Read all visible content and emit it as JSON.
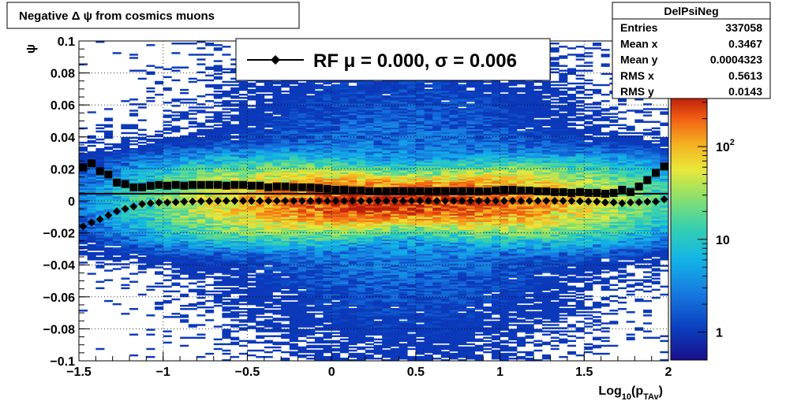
{
  "chart_data": {
    "type": "heatmap",
    "title": "Negative Δ ψ from cosmics muons",
    "xlabel": "Log",
    "xlabel_sub": "10",
    "xlabel_paren_open": "(p",
    "xlabel_sub2": "TAv",
    "xlabel_paren_close": ")",
    "ylabel": "ψ",
    "xlim": [
      -1.5,
      2
    ],
    "ylim": [
      -0.1,
      0.1
    ],
    "x_ticks": [
      "−1.5",
      "−1",
      "−0.5",
      "0",
      "0.5",
      "1",
      "1.5",
      "2"
    ],
    "x_tick_values": [
      -1.5,
      -1,
      -0.5,
      0,
      0.5,
      1,
      1.5,
      2
    ],
    "y_ticks": [
      "−0.1",
      "−0.08",
      "−0.06",
      "−0.04",
      "−0.02",
      "0",
      "0.02",
      "0.04",
      "0.06",
      "0.08",
      "0.1"
    ],
    "y_tick_values": [
      -0.1,
      -0.08,
      -0.06,
      -0.04,
      -0.02,
      0,
      0.02,
      0.04,
      0.06,
      0.08,
      0.1
    ],
    "grid": true,
    "z_scale": "log",
    "z_ticks": [
      "1",
      "10",
      "10"
    ],
    "z_tick_sup": [
      "",
      "",
      "2"
    ],
    "z_tick_values": [
      1,
      10,
      100
    ],
    "zlim": [
      0.5,
      350
    ],
    "stats": {
      "name": "DelPsiNeg",
      "rows": [
        {
          "label": "Entries",
          "value": "337058"
        },
        {
          "label": "Mean x",
          "value": "0.3467"
        },
        {
          "label": "Mean y",
          "value": "0.0004323"
        },
        {
          "label": "RMS x",
          "value": "0.5613"
        },
        {
          "label": "RMS y",
          "value": "0.0143"
        }
      ]
    },
    "legend": {
      "position": "top-center",
      "text": "RF μ =  0.000, σ =   0.006"
    },
    "fit_line_y": 0.0045,
    "mean_series": {
      "marker": "diamond",
      "points": [
        [
          -1.475,
          -0.016
        ],
        [
          -1.425,
          -0.0135
        ],
        [
          -1.375,
          -0.0115
        ],
        [
          -1.325,
          -0.009
        ],
        [
          -1.275,
          -0.0065
        ],
        [
          -1.225,
          -0.005
        ],
        [
          -1.175,
          -0.0035
        ],
        [
          -1.125,
          -0.002
        ],
        [
          -1.075,
          -0.0015
        ],
        [
          -1.025,
          -0.001
        ],
        [
          -0.975,
          -0.001
        ],
        [
          -0.925,
          -0.0008
        ],
        [
          -0.875,
          -0.0005
        ],
        [
          -0.825,
          -0.0004
        ],
        [
          -0.775,
          -0.0002
        ],
        [
          -0.725,
          -0.0002
        ],
        [
          -0.675,
          0
        ],
        [
          -0.625,
          0
        ],
        [
          -0.575,
          0
        ],
        [
          -0.525,
          0
        ],
        [
          -0.475,
          0
        ],
        [
          -0.425,
          0
        ],
        [
          -0.375,
          0
        ],
        [
          -0.325,
          0
        ],
        [
          -0.275,
          0
        ],
        [
          -0.225,
          0
        ],
        [
          -0.175,
          0
        ],
        [
          -0.125,
          0
        ],
        [
          -0.075,
          0
        ],
        [
          -0.025,
          0
        ],
        [
          0.025,
          0
        ],
        [
          0.075,
          0
        ],
        [
          0.125,
          0
        ],
        [
          0.175,
          0
        ],
        [
          0.225,
          0
        ],
        [
          0.275,
          0
        ],
        [
          0.325,
          0
        ],
        [
          0.375,
          0
        ],
        [
          0.425,
          0
        ],
        [
          0.475,
          0
        ],
        [
          0.525,
          0
        ],
        [
          0.575,
          0
        ],
        [
          0.625,
          0
        ],
        [
          0.675,
          0
        ],
        [
          0.725,
          0
        ],
        [
          0.775,
          0
        ],
        [
          0.825,
          0
        ],
        [
          0.875,
          0
        ],
        [
          0.925,
          0
        ],
        [
          0.975,
          0
        ],
        [
          1.025,
          0
        ],
        [
          1.075,
          0
        ],
        [
          1.125,
          0
        ],
        [
          1.175,
          0
        ],
        [
          1.225,
          0
        ],
        [
          1.275,
          0
        ],
        [
          1.325,
          0
        ],
        [
          1.375,
          0
        ],
        [
          1.425,
          0
        ],
        [
          1.475,
          -0.0002
        ],
        [
          1.525,
          -0.0003
        ],
        [
          1.575,
          -0.0005
        ],
        [
          1.625,
          -0.001
        ],
        [
          1.675,
          -0.001
        ],
        [
          1.725,
          -0.0015
        ],
        [
          1.775,
          -0.001
        ],
        [
          1.825,
          -0.0008
        ],
        [
          1.875,
          -0.0005
        ],
        [
          1.925,
          -0.0005
        ],
        [
          1.975,
          0.001
        ]
      ]
    },
    "rms_series": {
      "marker": "square",
      "points": [
        [
          -1.475,
          0.021
        ],
        [
          -1.425,
          0.0235
        ],
        [
          -1.375,
          0.0185
        ],
        [
          -1.325,
          0.0165
        ],
        [
          -1.275,
          0.0115
        ],
        [
          -1.225,
          0.0105
        ],
        [
          -1.175,
          0.0085
        ],
        [
          -1.125,
          0.0085
        ],
        [
          -1.075,
          0.0095
        ],
        [
          -1.025,
          0.01
        ],
        [
          -0.975,
          0.0095
        ],
        [
          -0.925,
          0.01
        ],
        [
          -0.875,
          0.0095
        ],
        [
          -0.825,
          0.01
        ],
        [
          -0.775,
          0.01
        ],
        [
          -0.725,
          0.01
        ],
        [
          -0.675,
          0.01
        ],
        [
          -0.625,
          0.0095
        ],
        [
          -0.575,
          0.01
        ],
        [
          -0.525,
          0.01
        ],
        [
          -0.475,
          0.0095
        ],
        [
          -0.425,
          0.0095
        ],
        [
          -0.375,
          0.0085
        ],
        [
          -0.325,
          0.009
        ],
        [
          -0.275,
          0.009
        ],
        [
          -0.225,
          0.0085
        ],
        [
          -0.175,
          0.0085
        ],
        [
          -0.125,
          0.0085
        ],
        [
          -0.075,
          0.008
        ],
        [
          -0.025,
          0.0075
        ],
        [
          0.025,
          0.007
        ],
        [
          0.075,
          0.007
        ],
        [
          0.125,
          0.0065
        ],
        [
          0.175,
          0.0065
        ],
        [
          0.225,
          0.006
        ],
        [
          0.275,
          0.006
        ],
        [
          0.325,
          0.006
        ],
        [
          0.375,
          0.006
        ],
        [
          0.425,
          0.006
        ],
        [
          0.475,
          0.006
        ],
        [
          0.525,
          0.006
        ],
        [
          0.575,
          0.006
        ],
        [
          0.625,
          0.006
        ],
        [
          0.675,
          0.006
        ],
        [
          0.725,
          0.006
        ],
        [
          0.775,
          0.006
        ],
        [
          0.825,
          0.006
        ],
        [
          0.875,
          0.006
        ],
        [
          0.925,
          0.006
        ],
        [
          0.975,
          0.0065
        ],
        [
          1.025,
          0.007
        ],
        [
          1.075,
          0.007
        ],
        [
          1.125,
          0.0065
        ],
        [
          1.175,
          0.0065
        ],
        [
          1.225,
          0.006
        ],
        [
          1.275,
          0.006
        ],
        [
          1.325,
          0.0055
        ],
        [
          1.375,
          0.0055
        ],
        [
          1.425,
          0.005
        ],
        [
          1.475,
          0.0055
        ],
        [
          1.525,
          0.005
        ],
        [
          1.575,
          0.005
        ],
        [
          1.625,
          0.0045
        ],
        [
          1.675,
          0.005
        ],
        [
          1.725,
          0.007
        ],
        [
          1.775,
          0.0055
        ],
        [
          1.825,
          0.009
        ],
        [
          1.875,
          0.013
        ],
        [
          1.925,
          0.0175
        ],
        [
          1.975,
          0.0215
        ]
      ]
    }
  }
}
